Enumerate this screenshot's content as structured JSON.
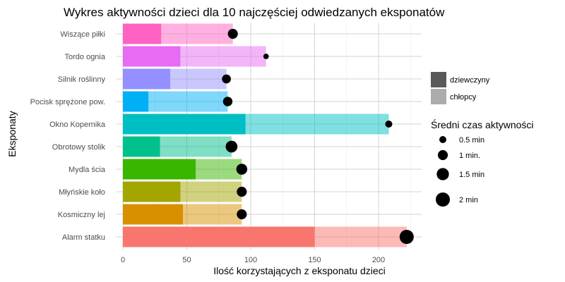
{
  "chart_data": {
    "type": "bar",
    "orientation": "horizontal",
    "stacked": true,
    "title": "Wykres aktywności dzieci dla 10 najczęściej odwiedzanych eksponatów",
    "xlabel": "Ilość korzystających z eksponatu dzieci",
    "ylabel": "Eksponaty",
    "xlim": [
      0,
      230
    ],
    "x_ticks": [
      0,
      50,
      100,
      150,
      200
    ],
    "grid": true,
    "categories": [
      "Wiszące piłki",
      "Tordo ognia",
      "Silnik roślinny",
      "Pocisk sprężone pow.",
      "Okno Kopernika",
      "Obrotowy stolik",
      "Mydla ścia",
      "Młyńskie koło",
      "Kosmiczny lej",
      "Alarm statku"
    ],
    "colors": [
      "#ff61c3",
      "#e76bf3",
      "#9590ff",
      "#00b0f6",
      "#00bfc4",
      "#00c08b",
      "#39b600",
      "#a3a500",
      "#d89000",
      "#f8766d"
    ],
    "series": [
      {
        "name": "dziewczyny",
        "values": [
          30,
          45,
          37,
          20,
          96,
          29,
          57,
          45,
          47,
          150
        ]
      },
      {
        "name": "chłopcy",
        "values": [
          56,
          67,
          44,
          62,
          112,
          56,
          36,
          48,
          46,
          72
        ]
      }
    ],
    "avg_time_series": {
      "name": "Średni czas aktywności",
      "values": [
        1.0,
        0.3,
        0.8,
        0.9,
        0.5,
        1.4,
        1.2,
        1.0,
        1.0,
        2.0
      ]
    },
    "legend": {
      "position": "right",
      "fill_title": "",
      "fill_entries": [
        {
          "label": "dziewczyny",
          "color": "#595959"
        },
        {
          "label": "chłopcy",
          "color": "#acacac"
        }
      ],
      "size_title": "Średni czas aktywności",
      "size_entries": [
        {
          "label": "0.5 min",
          "value": 0.5
        },
        {
          "label": "1 min.",
          "value": 1.0
        },
        {
          "label": "1.5 min",
          "value": 1.5
        },
        {
          "label": "2 min",
          "value": 2.0
        }
      ]
    }
  }
}
